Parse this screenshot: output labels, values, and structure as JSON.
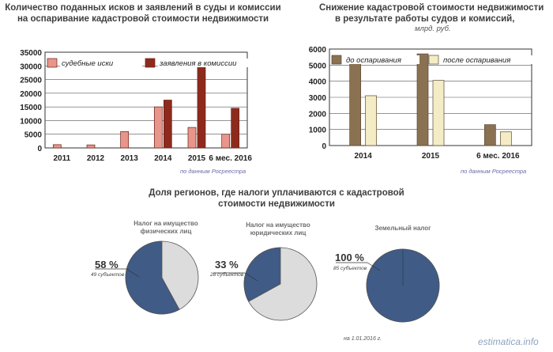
{
  "left_chart": {
    "title_line1": "Количество поданных исков и заявлений в суды и комиссии",
    "title_line2": "на оспаривание кадастровой стоимости недвижимости",
    "source": "по данным Росреестра"
  },
  "right_chart": {
    "title_line1": "Снижение кадастровой стоимости недвижимости",
    "title_line2": "в результате работы судов и комиссий,",
    "unit": "млрд. руб.",
    "source": "по данным Росреестра"
  },
  "pies": {
    "title_line1": "Доля регионов, где налоги уплачиваются с кадастровой",
    "title_line2": "стоимости недвижимости",
    "items": [
      {
        "label_line1": "Налог на имущество",
        "label_line2": "физических лиц",
        "pct": "58 %",
        "subjects": "49 субъектов"
      },
      {
        "label_line1": "Налог на имущество",
        "label_line2": "юридических лиц",
        "pct": "33 %",
        "subjects": "28 субъектов"
      },
      {
        "label_line1": "Земельный налог",
        "label_line2": "",
        "pct": "100 %",
        "subjects": "85 субъектов"
      }
    ],
    "date_note": "на 1.01.2016 г."
  },
  "watermark": "estimatica.info",
  "chart_data": [
    {
      "type": "bar",
      "title": "Количество поданных исков и заявлений в суды и комиссии на оспаривание кадастровой стоимости недвижимости",
      "categories": [
        "2011",
        "2012",
        "2013",
        "2014",
        "2015",
        "6 мес. 2016"
      ],
      "series": [
        {
          "name": "судебные иски",
          "values": [
            1200,
            1100,
            6000,
            15000,
            7500,
            5000
          ],
          "color": "#e8958b"
        },
        {
          "name": "заявления в комиссии",
          "values": [
            0,
            0,
            0,
            17500,
            31000,
            14500
          ],
          "color": "#8e2a1d"
        }
      ],
      "ylim": [
        0,
        35000
      ],
      "yticks": [
        "0",
        "5000",
        "10000",
        "15000",
        "20000",
        "25000",
        "30000",
        "35000"
      ],
      "legend": "top",
      "grid": true
    },
    {
      "type": "bar",
      "title": "Снижение кадастровой стоимости недвижимости в результате работы судов и комиссий",
      "unit": "млрд. руб.",
      "categories": [
        "2014",
        "2015",
        "6 мес. 2016"
      ],
      "series": [
        {
          "name": "до оспаривания",
          "values": [
            5450,
            5700,
            1300
          ],
          "color": "#8a7152"
        },
        {
          "name": "после оспаривания",
          "values": [
            3100,
            4050,
            850
          ],
          "color": "#f4ecc5"
        }
      ],
      "ylim": [
        0,
        6000
      ],
      "yticks": [
        "0",
        "1000",
        "2000",
        "3000",
        "4000",
        "5000",
        "6000"
      ],
      "legend": "top",
      "grid": true
    },
    {
      "type": "pie",
      "title": "Доля регионов, где налоги уплачиваются с кадастровой стоимости недвижимости",
      "charts": [
        {
          "name": "Налог на имущество физических лиц",
          "share": 58
        },
        {
          "name": "Налог на имущество юридических лиц",
          "share": 33
        },
        {
          "name": "Земельный налог",
          "share": 100
        }
      ],
      "colors": {
        "share": "#3f5b86",
        "rest": "#dcdcdc"
      }
    }
  ]
}
